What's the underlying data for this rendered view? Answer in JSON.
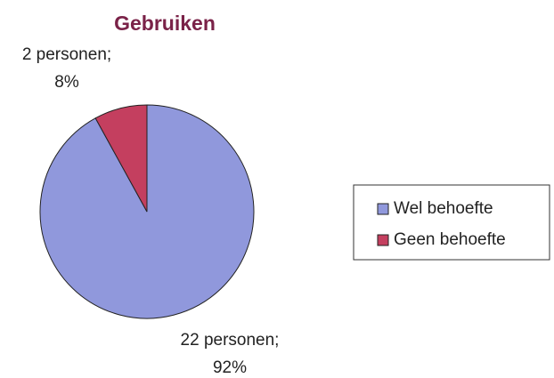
{
  "chart_data": {
    "type": "pie",
    "title": "Gebruiken",
    "categories": [
      "Wel behoefte",
      "Geen behoefte"
    ],
    "values": [
      92,
      8
    ],
    "value_labels": [
      [
        "22 personen;",
        "92%"
      ],
      [
        "2 personen;",
        "8%"
      ]
    ],
    "colors": [
      "#9098dc",
      "#c43f5f"
    ],
    "legend": "right"
  }
}
